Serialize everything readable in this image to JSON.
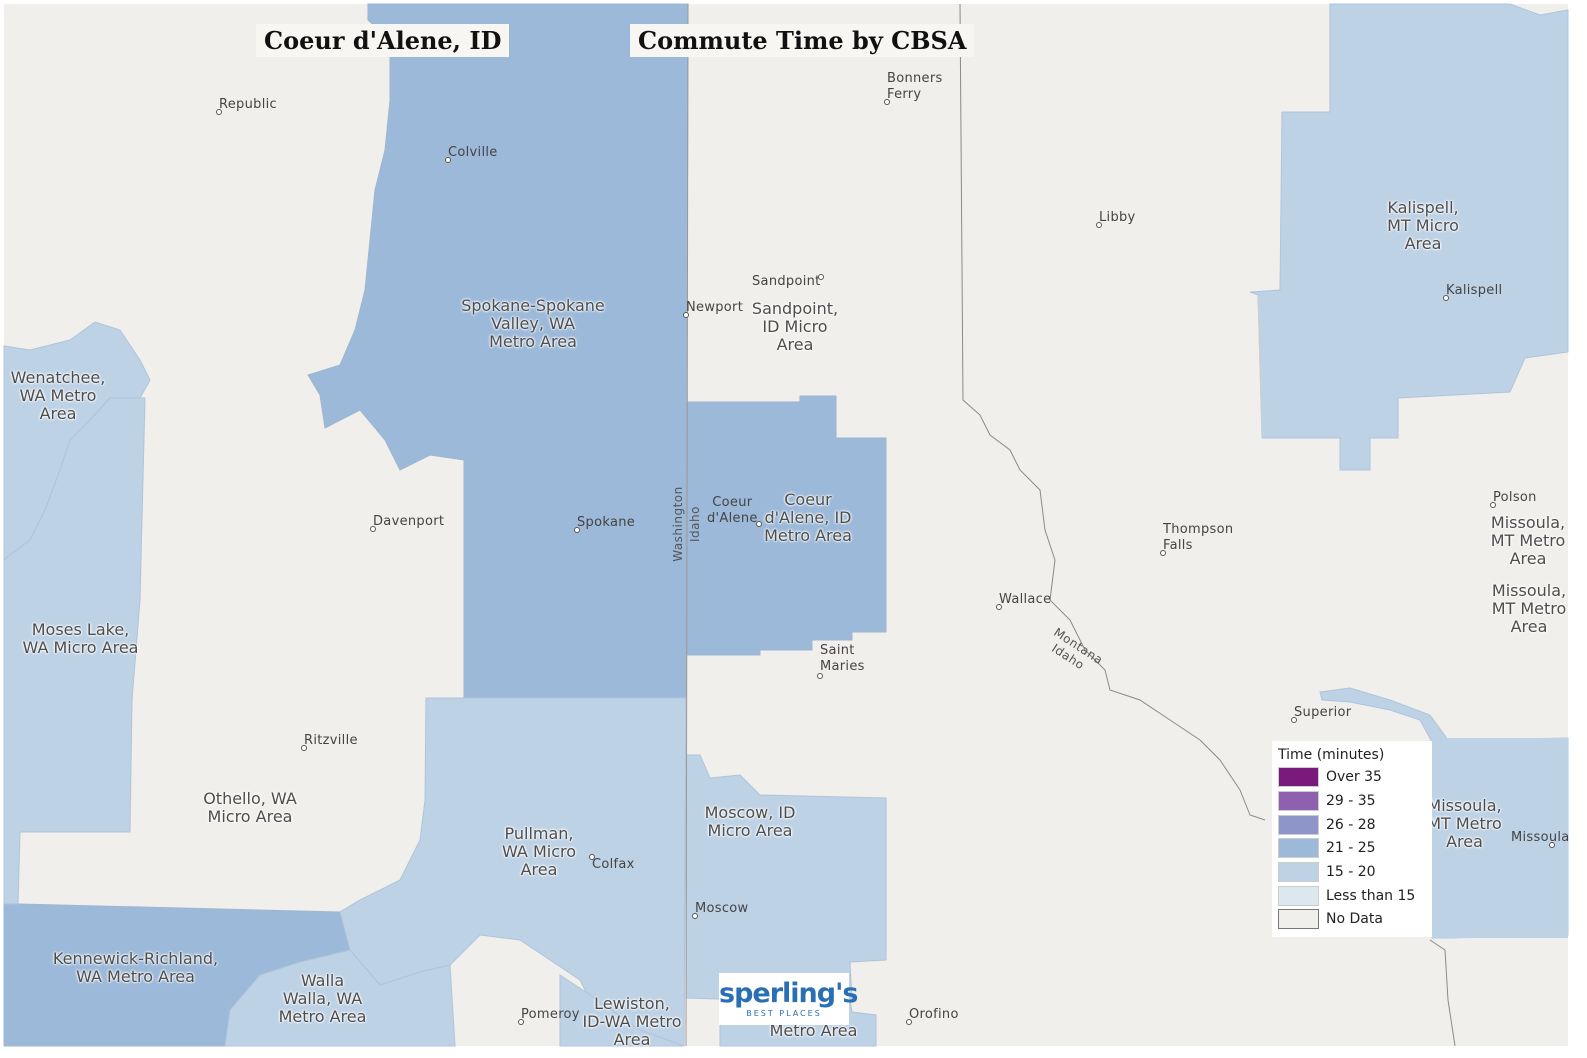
{
  "titles": {
    "left": "Coeur d'Alene, ID",
    "right": "Commute Time by CBSA"
  },
  "colors": {
    "background": "#f1efeb",
    "band_21_25": "#9db9d9",
    "band_15_20": "#bed2e6",
    "boundary": "#8a8a8a"
  },
  "regions": [
    {
      "id": "spokane",
      "label": "Spokane-Spokane\nValley, WA\nMetro Area",
      "band": "21 - 25"
    },
    {
      "id": "coeur",
      "label": "Coeur\nd'Alene, ID\nMetro Area",
      "band": "21 - 25"
    },
    {
      "id": "kennewick",
      "label": "Kennewick-Richland,\nWA Metro Area",
      "band": "21 - 25"
    },
    {
      "id": "wenatchee",
      "label": "Wenatchee,\nWA Metro\nArea",
      "band": "15 - 20"
    },
    {
      "id": "moseslake",
      "label": "Moses Lake,\nWA Micro Area",
      "band": "15 - 20"
    },
    {
      "id": "othello",
      "label": "Othello, WA\nMicro Area",
      "band": "No Data"
    },
    {
      "id": "pullman",
      "label": "Pullman,\nWA Micro\nArea",
      "band": "15 - 20"
    },
    {
      "id": "moscow",
      "label": "Moscow, ID\nMicro Area",
      "band": "15 - 20"
    },
    {
      "id": "wallawalla",
      "label": "Walla\nWalla, WA\nMetro Area",
      "band": "15 - 20"
    },
    {
      "id": "lewiston",
      "label": "Lewiston,\nID-WA Metro\nArea",
      "band": "15 - 20"
    },
    {
      "id": "lewiston2",
      "label": "Metro Area",
      "band": "15 - 20"
    },
    {
      "id": "sandpoint",
      "label": "Sandpoint,\nID Micro\nArea",
      "band": "No Data"
    },
    {
      "id": "kalispell",
      "label": "Kalispell,\nMT Micro\nArea",
      "band": "15 - 20"
    },
    {
      "id": "missoula1",
      "label": "Missoula,\nMT Metro\nArea",
      "band": "No Data"
    },
    {
      "id": "missoula2",
      "label": "Missoula,\nMT Metro\nArea",
      "band": "No Data"
    },
    {
      "id": "missoula3",
      "label": "Missoula,\nMT Metro\nArea",
      "band": "15 - 20"
    }
  ],
  "towns": [
    {
      "id": "republic",
      "name": "Republic"
    },
    {
      "id": "colville",
      "name": "Colville"
    },
    {
      "id": "bonners",
      "name": "Bonners\nFerry"
    },
    {
      "id": "libby",
      "name": "Libby"
    },
    {
      "id": "sandpoint",
      "name": "Sandpoint"
    },
    {
      "id": "newport",
      "name": "Newport"
    },
    {
      "id": "kalispell",
      "name": "Kalispell"
    },
    {
      "id": "davenport",
      "name": "Davenport"
    },
    {
      "id": "spokane",
      "name": "Spokane"
    },
    {
      "id": "coeurdalene",
      "name": "Coeur\nd'Alene"
    },
    {
      "id": "polson",
      "name": "Polson"
    },
    {
      "id": "thompson",
      "name": "Thompson\nFalls"
    },
    {
      "id": "wallace",
      "name": "Wallace"
    },
    {
      "id": "saintmaries",
      "name": "Saint\nMaries"
    },
    {
      "id": "superior",
      "name": "Superior"
    },
    {
      "id": "ritzville",
      "name": "Ritzville"
    },
    {
      "id": "colfax",
      "name": "Colfax"
    },
    {
      "id": "moscow",
      "name": "Moscow"
    },
    {
      "id": "missoula",
      "name": "Missoula"
    },
    {
      "id": "pomeroy",
      "name": "Pomeroy"
    },
    {
      "id": "orofino",
      "name": "Orofino"
    }
  ],
  "state_labels": {
    "washington": "Washington",
    "idaho_w": "Idaho",
    "montana": "Montana",
    "idaho_e": "Idaho"
  },
  "legend": {
    "title": "Time (minutes)",
    "items": [
      {
        "label": "Over 35",
        "color": "#7b1a7d"
      },
      {
        "label": "29 - 35",
        "color": "#8f5fb0"
      },
      {
        "label": "26 - 28",
        "color": "#8d95c9"
      },
      {
        "label": "21 - 25",
        "color": "#9db9d9"
      },
      {
        "label": "15 - 20",
        "color": "#bed2e6"
      },
      {
        "label": "Less than 15",
        "color": "#dde8ee"
      },
      {
        "label": "No Data",
        "color": "#f1efeb"
      }
    ]
  },
  "logo": {
    "main": "sperling's",
    "sub": "BEST PLACES"
  }
}
